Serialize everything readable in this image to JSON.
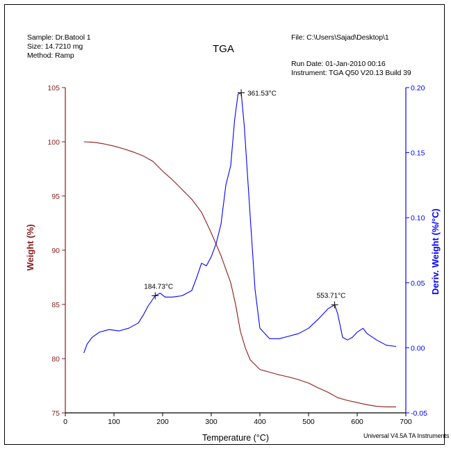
{
  "header": {
    "sample": "Sample: Dr.Batool 1",
    "size": "Size:  14.7210 mg",
    "method": "Method: Ramp",
    "title": "TGA",
    "file": "File: C:\\Users\\Sajad\\Desktop\\1",
    "run_date": "Run Date: 01-Jan-2010 00:16",
    "instrument": "Instrument: TGA Q50 V20.13 Build 39"
  },
  "footer": {
    "software": "Universal V4.5A TA Instruments"
  },
  "colors": {
    "weight": "#8b1a1a",
    "deriv": "#0000ff",
    "axis": "#000000"
  },
  "chart_data": {
    "type": "line",
    "xlabel": "Temperature (°C)",
    "ylabel_left": "Weight (%)",
    "ylabel_right": "Deriv. Weight (%/°C)",
    "xlim": [
      0,
      700
    ],
    "ylim_left": [
      75,
      105
    ],
    "ylim_right": [
      -0.05,
      0.2
    ],
    "x_ticks": [
      "0",
      "100",
      "200",
      "300",
      "400",
      "500",
      "600",
      "700"
    ],
    "y_left_ticks": [
      "75",
      "80",
      "85",
      "90",
      "95",
      "100",
      "105"
    ],
    "y_right_ticks": [
      "-0.05",
      "0.00",
      "0.05",
      "0.10",
      "0.15",
      "0.20"
    ],
    "series": [
      {
        "axis": "left",
        "color": "#8b1a1a",
        "x": [
          38,
          60,
          80,
          100,
          120,
          140,
          160,
          180,
          200,
          220,
          240,
          260,
          280,
          300,
          320,
          340,
          350,
          360,
          370,
          380,
          400,
          420,
          440,
          460,
          480,
          500,
          520,
          540,
          560,
          580,
          600,
          620,
          640,
          660,
          680
        ],
        "y": [
          100.0,
          99.95,
          99.8,
          99.6,
          99.35,
          99.05,
          98.7,
          98.2,
          97.3,
          96.5,
          95.6,
          94.7,
          93.5,
          91.6,
          89.5,
          87.0,
          85.0,
          82.5,
          81.0,
          79.9,
          79.0,
          78.75,
          78.5,
          78.3,
          78.05,
          77.75,
          77.3,
          76.9,
          76.4,
          76.15,
          75.95,
          75.75,
          75.6,
          75.55,
          75.55
        ]
      },
      {
        "axis": "right",
        "color": "#0000ff",
        "x": [
          38,
          45,
          55,
          70,
          90,
          110,
          130,
          150,
          160,
          170,
          184.73,
          195,
          205,
          220,
          240,
          260,
          270,
          280,
          290,
          300,
          310,
          320,
          330,
          340,
          348,
          355,
          361.53,
          368,
          375,
          382,
          390,
          400,
          420,
          440,
          460,
          480,
          500,
          520,
          540,
          553.71,
          560,
          570,
          580,
          590,
          600,
          612,
          620,
          640,
          660,
          680
        ],
        "y": [
          -0.004,
          0.003,
          0.008,
          0.012,
          0.014,
          0.013,
          0.015,
          0.019,
          0.025,
          0.032,
          0.04,
          0.042,
          0.039,
          0.039,
          0.04,
          0.044,
          0.054,
          0.065,
          0.063,
          0.07,
          0.08,
          0.095,
          0.125,
          0.14,
          0.175,
          0.195,
          0.196,
          0.17,
          0.13,
          0.09,
          0.045,
          0.015,
          0.007,
          0.007,
          0.009,
          0.011,
          0.015,
          0.022,
          0.03,
          0.033,
          0.026,
          0.008,
          0.006,
          0.008,
          0.012,
          0.015,
          0.011,
          0.006,
          0.002,
          0.001
        ]
      }
    ],
    "annotations": [
      {
        "label": "184.73°C",
        "x": 184.73,
        "y": 0.04,
        "axis": "right"
      },
      {
        "label": "361.53°C",
        "x": 361.53,
        "y": 0.196,
        "axis": "right"
      },
      {
        "label": "553.71°C",
        "x": 553.71,
        "y": 0.033,
        "axis": "right"
      }
    ]
  }
}
